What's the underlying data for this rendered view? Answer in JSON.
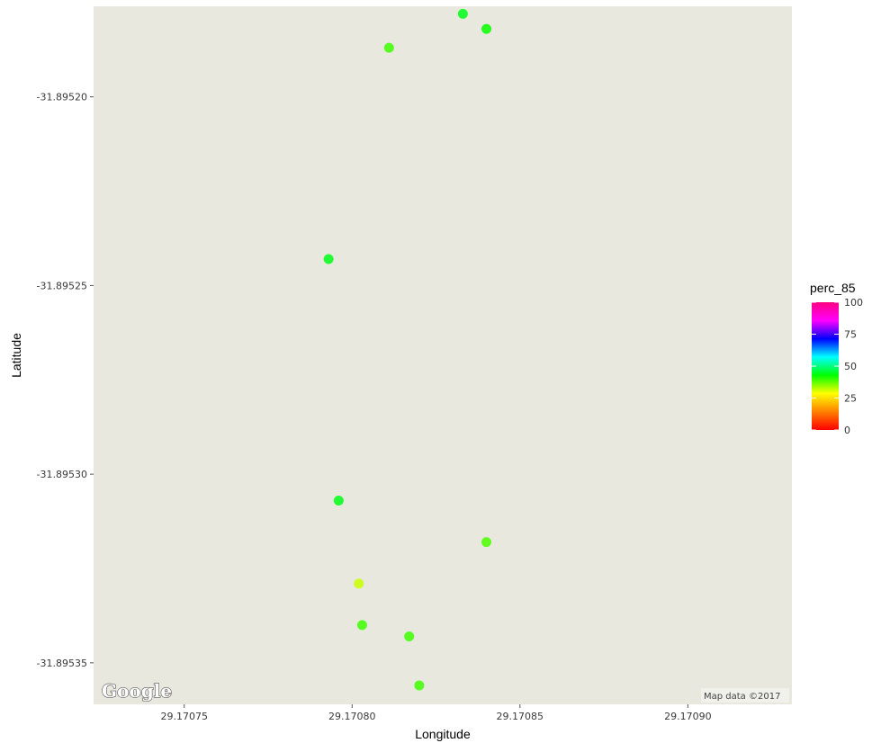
{
  "chart_data": {
    "type": "scatter",
    "title": "",
    "xlabel": "Longitude",
    "ylabel": "Latitude",
    "xlim": [
      29.170723,
      29.170931
    ],
    "ylim": [
      -31.895361,
      -31.895176
    ],
    "x_ticks": [
      29.17075,
      29.1708,
      29.17085,
      29.1709
    ],
    "x_tick_labels": [
      "29.17075",
      "29.17080",
      "29.17085",
      "29.17090"
    ],
    "y_ticks": [
      -31.8952,
      -31.89525,
      -31.8953,
      -31.89535
    ],
    "y_tick_labels": [
      "-31.89520",
      "-31.89525",
      "-31.89530",
      "-31.89535"
    ],
    "grid": false,
    "legend": {
      "title": "perc_85",
      "type": "colorbar",
      "position": "right",
      "range": [
        0,
        100
      ],
      "ticks": [
        0,
        25,
        50,
        75,
        100
      ],
      "tick_labels": [
        "0",
        "25",
        "50",
        "75",
        "100"
      ],
      "colors": [
        "#ff0000",
        "#ff8000",
        "#ffff00",
        "#00ff00",
        "#00ffff",
        "#0000ff",
        "#ff00ff",
        "#ff0080"
      ]
    },
    "points": [
      {
        "x": 29.170833,
        "y": -31.895178,
        "perc_85": 38
      },
      {
        "x": 29.17084,
        "y": -31.895182,
        "perc_85": 36
      },
      {
        "x": 29.170811,
        "y": -31.895187,
        "perc_85": 32
      },
      {
        "x": 29.170793,
        "y": -31.895243,
        "perc_85": 38
      },
      {
        "x": 29.170796,
        "y": -31.895307,
        "perc_85": 38
      },
      {
        "x": 29.17084,
        "y": -31.895318,
        "perc_85": 31
      },
      {
        "x": 29.170802,
        "y": -31.895329,
        "perc_85": 22
      },
      {
        "x": 29.170803,
        "y": -31.89534,
        "perc_85": 32
      },
      {
        "x": 29.170817,
        "y": -31.895343,
        "perc_85": 32
      },
      {
        "x": 29.17082,
        "y": -31.895356,
        "perc_85": 32
      }
    ]
  },
  "map": {
    "logo_text": "Google",
    "attribution": "Map data ©2017"
  }
}
